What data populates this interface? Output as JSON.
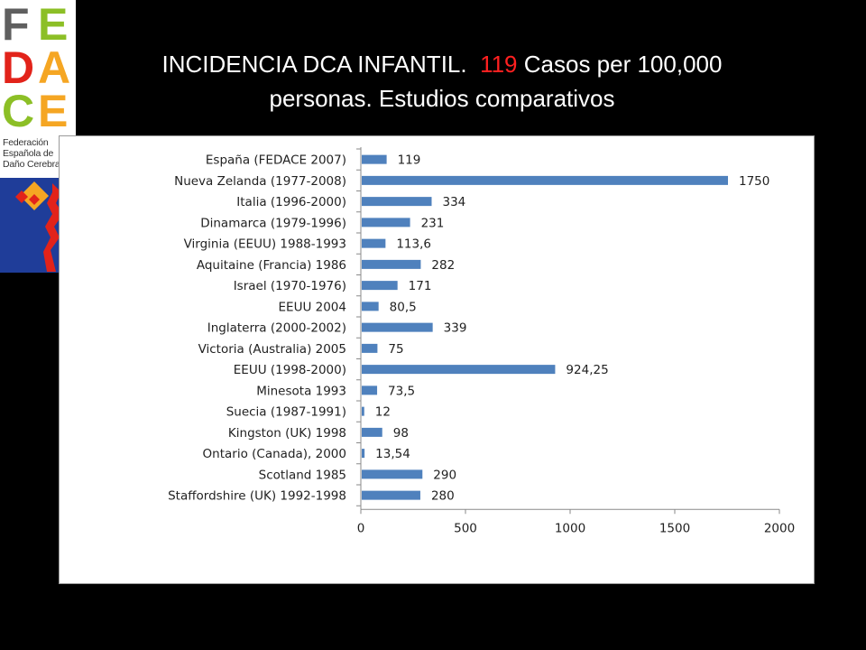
{
  "logo": {
    "letters": [
      "F",
      "E",
      "D",
      "A",
      "C",
      "E"
    ],
    "org_lines": [
      "Federación",
      "Española de",
      "Daño Cerebral"
    ],
    "colors": {
      "gray": "#5f5f5f",
      "green": "#8cbf26",
      "red": "#e2231a",
      "orange": "#f5a623",
      "blue": "#1f3d99"
    }
  },
  "title": {
    "pre": "INCIDENCIA DCA INFANTIL.",
    "highlight": "119",
    "line1_rest": "Casos per 100,000",
    "line2": "personas. Estudios comparativos"
  },
  "chart_data": {
    "type": "bar",
    "orientation": "horizontal",
    "categories": [
      "España (FEDACE 2007)",
      "Nueva Zelanda (1977-2008)",
      "Italia (1996-2000)",
      "Dinamarca (1979-1996)",
      "Virginia (EEUU) 1988-1993",
      "Aquitaine (Francia) 1986",
      "Israel (1970-1976)",
      "EEUU 2004",
      "Inglaterra (2000-2002)",
      "Victoria (Australia) 2005",
      "EEUU (1998-2000)",
      "Minesota 1993",
      "Suecia (1987-1991)",
      "Kingston (UK) 1998",
      "Ontario (Canada), 2000",
      "Scotland 1985",
      "Staffordshire (UK) 1992-1998"
    ],
    "values": [
      119,
      1750,
      334,
      231,
      113.6,
      282,
      171,
      80.5,
      339,
      75,
      924.25,
      73.5,
      12,
      98,
      13.54,
      290,
      280
    ],
    "value_labels": [
      "119",
      "1750",
      "334",
      "231",
      "113,6",
      "282",
      "171",
      "80,5",
      "339",
      "75",
      "924,25",
      "73,5",
      "12",
      "98",
      "13,54",
      "290",
      "280"
    ],
    "xlim": [
      0,
      2000
    ],
    "xticks": [
      0,
      500,
      1000,
      1500,
      2000
    ],
    "grid": false,
    "legend": "none",
    "bar_color": "#4f81bd"
  }
}
